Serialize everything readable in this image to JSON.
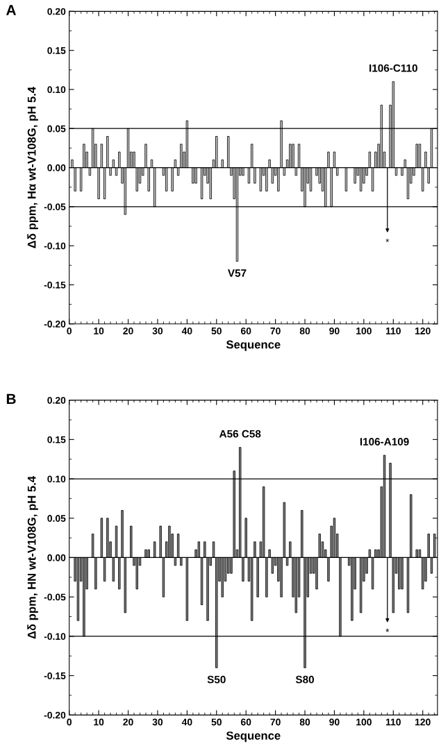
{
  "chart_data": [
    {
      "type": "bar",
      "title": "A",
      "xlabel": "Sequence",
      "ylabel": "Δδ ppm, Hα wt-V108G, pH 5.4",
      "series": [
        {
          "color": "#c8c8c8",
          "x": [
            1,
            2,
            4,
            5,
            6,
            7,
            8,
            9,
            10,
            11,
            12,
            13,
            14,
            15,
            16,
            17,
            18,
            19,
            20,
            21,
            22,
            23,
            24,
            25,
            26,
            27,
            28,
            29,
            32,
            33,
            35,
            36,
            37,
            38,
            39,
            40,
            42,
            43,
            45,
            46,
            47,
            48,
            49,
            50,
            52,
            54,
            55,
            56,
            57,
            58,
            59,
            61,
            62,
            63,
            65,
            66,
            67,
            68,
            69,
            70,
            71,
            72,
            73,
            74,
            75,
            76,
            77,
            78,
            79,
            80,
            81,
            82,
            84,
            85,
            86,
            87,
            88,
            89,
            90,
            91,
            94,
            97,
            98,
            99,
            100,
            101,
            102,
            103,
            104,
            105,
            106,
            107,
            109,
            110,
            111,
            113,
            114,
            115,
            116,
            117,
            118,
            119,
            120,
            121,
            122,
            123
          ],
          "values": [
            0.01,
            -0.03,
            -0.03,
            0.03,
            0.02,
            -0.01,
            0.05,
            0.03,
            -0.04,
            0.03,
            -0.04,
            0.04,
            -0.01,
            0.01,
            -0.01,
            0.02,
            -0.02,
            -0.06,
            0.05,
            0.02,
            0.02,
            -0.03,
            -0.02,
            -0.01,
            0.03,
            -0.03,
            0.01,
            -0.05,
            -0.01,
            -0.03,
            -0.03,
            0.01,
            -0.01,
            0.03,
            0.02,
            0.06,
            -0.02,
            -0.02,
            -0.04,
            -0.01,
            -0.02,
            -0.04,
            0.01,
            0.04,
            0.01,
            0.04,
            -0.01,
            -0.04,
            -0.12,
            -0.01,
            -0.01,
            -0.02,
            0.03,
            -0.02,
            -0.03,
            -0.01,
            -0.03,
            0.01,
            -0.02,
            -0.01,
            -0.03,
            0.06,
            -0.01,
            0.01,
            0.03,
            0.03,
            -0.01,
            0.03,
            -0.03,
            -0.05,
            -0.02,
            -0.03,
            -0.01,
            -0.02,
            -0.03,
            -0.05,
            0.02,
            -0.05,
            0.02,
            -0.01,
            -0.03,
            -0.02,
            -0.01,
            -0.03,
            -0.02,
            -0.01,
            0.02,
            -0.03,
            0.02,
            0.03,
            0.08,
            0.02,
            0.08,
            0.11,
            -0.01,
            -0.01,
            0.01,
            -0.04,
            -0.02,
            -0.01,
            0.03,
            0.03,
            -0.03,
            0.02,
            -0.02,
            0.05
          ]
        }
      ],
      "xlim": [
        0,
        125
      ],
      "xticks": [
        0,
        10,
        20,
        30,
        40,
        50,
        60,
        70,
        80,
        90,
        100,
        110,
        120
      ],
      "ylim": [
        -0.2,
        0.2
      ],
      "yticks": [
        {
          "value": -0.2,
          "label": "-0.20"
        },
        {
          "value": -0.15,
          "label": "-0.15"
        },
        {
          "value": -0.1,
          "label": "-0.10"
        },
        {
          "value": -0.05,
          "label": "-0.05"
        },
        {
          "value": 0,
          "label": "0.00"
        },
        {
          "value": 0.05,
          "label": "0.05"
        },
        {
          "value": 0.1,
          "label": "0.10"
        },
        {
          "value": 0.15,
          "label": "0.15"
        },
        {
          "value": 0.2,
          "label": "0.20"
        }
      ],
      "ref_lines": [
        {
          "axis": "y",
          "value": 0.05,
          "color": "#000000"
        },
        {
          "axis": "y",
          "value": -0.05,
          "color": "#000000"
        },
        {
          "axis": "y",
          "value": 0,
          "color": "#000000"
        }
      ],
      "annotations": [
        {
          "text": "V57",
          "x": 57,
          "y": -0.12
        },
        {
          "text": "I106-C110",
          "x": 110,
          "y": 0.11
        },
        {
          "text": "*",
          "x": 108,
          "y": 0
        }
      ],
      "grid": false,
      "legend": false
    },
    {
      "type": "bar",
      "title": "B",
      "xlabel": "Sequence",
      "ylabel": "Δδ ppm, HN wt-V108G, pH 5.4",
      "series": [
        {
          "color": "#808080",
          "x": [
            2,
            3,
            4,
            5,
            6,
            8,
            9,
            11,
            12,
            13,
            14,
            15,
            16,
            17,
            18,
            19,
            21,
            22,
            23,
            24,
            26,
            27,
            29,
            31,
            32,
            33,
            34,
            35,
            36,
            37,
            38,
            40,
            43,
            44,
            45,
            46,
            47,
            48,
            49,
            50,
            51,
            52,
            53,
            54,
            55,
            56,
            57,
            58,
            59,
            60,
            61,
            62,
            63,
            64,
            65,
            66,
            67,
            68,
            69,
            70,
            71,
            72,
            73,
            74,
            75,
            76,
            77,
            78,
            79,
            80,
            81,
            82,
            83,
            84,
            85,
            86,
            87,
            88,
            89,
            90,
            91,
            92,
            95,
            96,
            97,
            99,
            100,
            101,
            102,
            103,
            104,
            105,
            106,
            107,
            109,
            110,
            111,
            112,
            113,
            115,
            116,
            118,
            119,
            120,
            121,
            122,
            123,
            124
          ],
          "values": [
            -0.03,
            -0.08,
            -0.03,
            -0.1,
            -0.04,
            0.03,
            -0.04,
            0.05,
            -0.03,
            0.05,
            0.02,
            -0.03,
            0.04,
            -0.04,
            0.06,
            -0.07,
            0.04,
            -0.01,
            -0.04,
            -0.01,
            0.01,
            0.01,
            0.02,
            0.04,
            -0.05,
            0.02,
            0.04,
            0.03,
            -0.01,
            0.03,
            -0.01,
            -0.08,
            0.01,
            0.02,
            -0.06,
            0.02,
            -0.08,
            -0.01,
            0.02,
            -0.14,
            -0.03,
            -0.05,
            -0.03,
            -0.02,
            -0.02,
            0.11,
            0.01,
            0.14,
            -0.03,
            0.05,
            -0.03,
            -0.08,
            0.02,
            -0.05,
            0.02,
            0.09,
            -0.05,
            0.01,
            -0.02,
            -0.01,
            -0.03,
            -0.05,
            0.07,
            -0.01,
            0.02,
            -0.05,
            -0.07,
            -0.05,
            0.06,
            -0.14,
            -0.05,
            -0.02,
            -0.02,
            -0.04,
            0.03,
            0.02,
            0.01,
            -0.03,
            0.04,
            0.05,
            0.03,
            -0.1,
            -0.01,
            -0.08,
            -0.04,
            -0.07,
            -0.03,
            -0.02,
            0.01,
            -0.04,
            0.01,
            0.01,
            0.09,
            0.13,
            0.12,
            -0.07,
            -0.02,
            -0.04,
            -0.04,
            -0.07,
            0.08,
            0.01,
            0.01,
            -0.04,
            -0.03,
            0.03,
            -0.02,
            0.03
          ]
        }
      ],
      "xlim": [
        0,
        125
      ],
      "xticks": [
        0,
        10,
        20,
        30,
        40,
        50,
        60,
        70,
        80,
        90,
        100,
        110,
        120
      ],
      "ylim": [
        -0.2,
        0.2
      ],
      "yticks": [
        {
          "value": -0.2,
          "label": "-0.20"
        },
        {
          "value": -0.15,
          "label": "-0.15"
        },
        {
          "value": -0.1,
          "label": "-0.10"
        },
        {
          "value": -0.05,
          "label": "-0.05"
        },
        {
          "value": 0,
          "label": "0.00"
        },
        {
          "value": 0.05,
          "label": "0.05"
        },
        {
          "value": 0.1,
          "label": "0.10"
        },
        {
          "value": 0.15,
          "label": "0.15"
        },
        {
          "value": 0.2,
          "label": "0.20"
        }
      ],
      "ref_lines": [
        {
          "axis": "y",
          "value": 0.1,
          "color": "#000000"
        },
        {
          "axis": "y",
          "value": -0.1,
          "color": "#000000"
        },
        {
          "axis": "y",
          "value": 0,
          "color": "#000000"
        }
      ],
      "annotations": [
        {
          "text": "A56 C58",
          "x": 58,
          "y": 0.14
        },
        {
          "text": "I106-A109",
          "x": 107,
          "y": 0.13
        },
        {
          "text": "S50",
          "x": 50,
          "y": -0.14
        },
        {
          "text": "S80",
          "x": 80,
          "y": -0.14
        },
        {
          "text": "*",
          "x": 108,
          "y": 0
        }
      ],
      "grid": false,
      "legend": false
    }
  ]
}
